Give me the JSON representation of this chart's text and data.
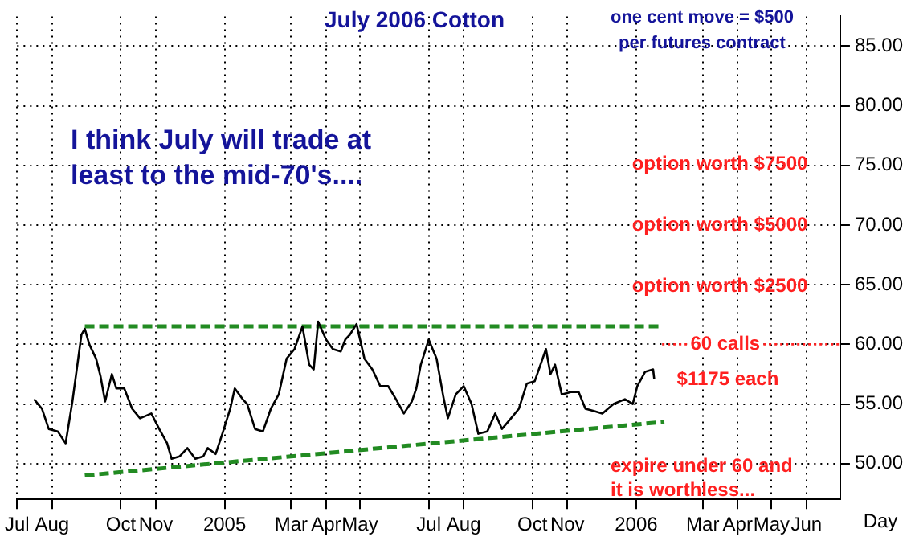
{
  "chart_data": {
    "type": "line",
    "title": "July 2006 Cotton",
    "xlabel": "Day",
    "annotations": [
      "one cent move = $500",
      "per futures contract",
      "I think July will trade at",
      "least to the mid-70's....",
      "$1175 each",
      "expire under 60 and",
      "it is worthless...",
      "option worth $7500",
      "option worth $5000",
      "option worth $2500",
      {
        "text": "60 calls",
        "x": "2006-03-21",
        "y": 60
      }
    ],
    "x": [
      "2004-07-16",
      "2004-07-23",
      "2004-07-29",
      "2004-08-06",
      "2004-08-13",
      "2004-08-19",
      "2004-08-27",
      "2004-08-30",
      "2004-09-03",
      "2004-09-09",
      "2004-09-13",
      "2004-09-17",
      "2004-09-23",
      "2004-09-27",
      "2004-10-04",
      "2004-10-11",
      "2004-10-18",
      "2004-10-28",
      "2004-11-04",
      "2004-11-11",
      "2004-11-15",
      "2004-11-22",
      "2004-11-29",
      "2004-12-06",
      "2004-12-13",
      "2004-12-17",
      "2004-12-24",
      "2004-12-30",
      "2005-01-06",
      "2005-01-10",
      "2005-01-17",
      "2005-01-21",
      "2005-01-28",
      "2005-02-04",
      "2005-02-11",
      "2005-02-18",
      "2005-02-25",
      "2005-03-04",
      "2005-03-11",
      "2005-03-17",
      "2005-03-21",
      "2005-03-25",
      "2005-04-01",
      "2005-04-07",
      "2005-04-14",
      "2005-04-18",
      "2005-04-22",
      "2005-04-28",
      "2005-05-05",
      "2005-05-12",
      "2005-05-19",
      "2005-05-26",
      "2005-06-02",
      "2005-06-09",
      "2005-06-16",
      "2005-06-20",
      "2005-06-24",
      "2005-07-01",
      "2005-07-08",
      "2005-07-14",
      "2005-07-18",
      "2005-07-25",
      "2005-08-01",
      "2005-08-08",
      "2005-08-14",
      "2005-08-22",
      "2005-08-29",
      "2005-09-04",
      "2005-09-12",
      "2005-09-19",
      "2005-09-26",
      "2005-10-03",
      "2005-10-13",
      "2005-10-17",
      "2005-10-21",
      "2005-10-27",
      "2005-11-04",
      "2005-11-11",
      "2005-11-17",
      "2005-11-25",
      "2005-12-02",
      "2005-12-12",
      "2005-12-22",
      "2005-12-29",
      "2006-01-02",
      "2006-01-09",
      "2006-01-16",
      "2006-01-17"
    ],
    "xlim": [
      "2004-07-01",
      "2006-07-01"
    ],
    "xticks": [
      {
        "value": "2004-07-01",
        "label": "Jul"
      },
      {
        "value": "2004-08-01",
        "label": "Aug"
      },
      {
        "value": "2004-10-01",
        "label": "Oct"
      },
      {
        "value": "2004-11-01",
        "label": "Nov"
      },
      {
        "value": "2005-01-01",
        "label": "2005"
      },
      {
        "value": "2005-03-01",
        "label": "Mar"
      },
      {
        "value": "2005-04-01",
        "label": "Apr"
      },
      {
        "value": "2005-05-01",
        "label": "May"
      },
      {
        "value": "2005-07-01",
        "label": "Jul"
      },
      {
        "value": "2005-08-01",
        "label": "Aug"
      },
      {
        "value": "2005-10-01",
        "label": "Oct"
      },
      {
        "value": "2005-11-01",
        "label": "Nov"
      },
      {
        "value": "2006-01-01",
        "label": "2006"
      },
      {
        "value": "2006-03-01",
        "label": "Mar"
      },
      {
        "value": "2006-04-01",
        "label": "Apr"
      },
      {
        "value": "2006-05-01",
        "label": "May"
      },
      {
        "value": "2006-06-01",
        "label": "Jun"
      }
    ],
    "ylim": [
      47,
      87.5
    ],
    "yticks": [
      {
        "value": 50,
        "label": "50.00"
      },
      {
        "value": 55,
        "label": "55.00"
      },
      {
        "value": 60,
        "label": "60.00"
      },
      {
        "value": 65,
        "label": "65.00"
      },
      {
        "value": 70,
        "label": "70.00"
      },
      {
        "value": 75,
        "label": "75.00"
      },
      {
        "value": 80,
        "label": "80.00"
      },
      {
        "value": 85,
        "label": "85.00"
      }
    ],
    "grid": true,
    "marker": "none",
    "series": [
      {
        "color": "#000000",
        "line_style": "solid",
        "values": [
          55.4,
          54.6,
          52.9,
          52.7,
          51.7,
          55.2,
          60.8,
          61.3,
          60.0,
          58.8,
          57.3,
          55.2,
          57.5,
          56.3,
          56.3,
          54.6,
          53.8,
          54.2,
          52.9,
          51.7,
          50.4,
          50.6,
          51.3,
          50.4,
          50.6,
          51.3,
          50.8,
          52.5,
          54.6,
          56.3,
          55.4,
          55.0,
          52.9,
          52.7,
          54.6,
          55.8,
          58.8,
          59.6,
          61.5,
          58.3,
          57.9,
          61.9,
          60.4,
          59.6,
          59.4,
          60.4,
          60.8,
          61.7,
          58.8,
          57.9,
          56.5,
          56.5,
          55.4,
          54.2,
          55.2,
          56.3,
          58.3,
          60.4,
          58.8,
          55.6,
          53.8,
          55.8,
          56.5,
          55.0,
          52.5,
          52.7,
          54.2,
          52.9,
          53.8,
          54.6,
          56.7,
          56.9,
          59.6,
          57.5,
          58.3,
          55.8,
          56.0,
          56.0,
          54.6,
          54.4,
          54.2,
          55.0,
          55.4,
          55.0,
          56.5,
          57.7,
          57.9,
          57.1
        ]
      },
      {
        "type": "line",
        "color": "#228b22",
        "line_style": "dashed",
        "x": [
          "2004-08-30",
          "2006-01-23"
        ],
        "values": [
          61.5,
          61.5
        ]
      },
      {
        "type": "line",
        "color": "#228b22",
        "line_style": "dashed",
        "x": [
          "2004-08-30",
          "2006-01-26"
        ],
        "values": [
          49.0,
          53.5
        ]
      },
      {
        "type": "line",
        "color": "#ff2020",
        "line_style": "dotted",
        "x": [
          "2006-01-24",
          "2006-07-01"
        ],
        "values": [
          60,
          60
        ]
      }
    ]
  }
}
